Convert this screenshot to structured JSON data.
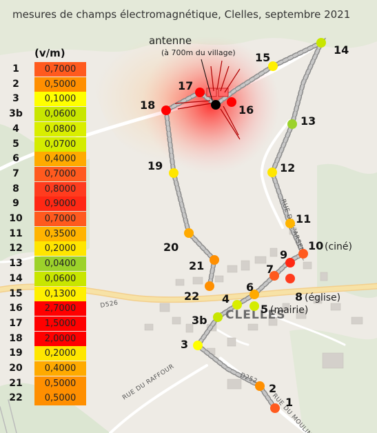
{
  "title": "mesures de champs électromagnétique, Clelles, septembre 2021",
  "legend": {
    "unit": "(v/m)",
    "rows": [
      {
        "id": "1",
        "value": "0,7000",
        "color": "#ff5a1e"
      },
      {
        "id": "2",
        "value": "0,5000",
        "color": "#ff8f00"
      },
      {
        "id": "3",
        "value": "0,1000",
        "color": "#ffff00"
      },
      {
        "id": "3b",
        "value": "0,0600",
        "color": "#c8e600"
      },
      {
        "id": "4",
        "value": "0,0800",
        "color": "#d9ee00"
      },
      {
        "id": "5",
        "value": "0,0700",
        "color": "#d4ec00"
      },
      {
        "id": "6",
        "value": "0,4000",
        "color": "#ffaa00"
      },
      {
        "id": "7",
        "value": "0,7000",
        "color": "#ff5a1e"
      },
      {
        "id": "8",
        "value": "0,8000",
        "color": "#ff3c1e"
      },
      {
        "id": "9",
        "value": "0,9000",
        "color": "#ff2814"
      },
      {
        "id": "10",
        "value": "0,7000",
        "color": "#ff5a1e"
      },
      {
        "id": "11",
        "value": "0,3500",
        "color": "#ffb400"
      },
      {
        "id": "12",
        "value": "0,2000",
        "color": "#ffe600"
      },
      {
        "id": "13",
        "value": "0,0400",
        "color": "#9cd22a"
      },
      {
        "id": "14",
        "value": "0,0600",
        "color": "#c8e600"
      },
      {
        "id": "15",
        "value": "0,1300",
        "color": "#fff000"
      },
      {
        "id": "16",
        "value": "2,7000",
        "color": "#ff0000"
      },
      {
        "id": "17",
        "value": "1,5000",
        "color": "#ff0000"
      },
      {
        "id": "18",
        "value": "2,0000",
        "color": "#ff0000"
      },
      {
        "id": "19",
        "value": "0,2000",
        "color": "#ffe600"
      },
      {
        "id": "20",
        "value": "0,4000",
        "color": "#ffaa00"
      },
      {
        "id": "21",
        "value": "0,5000",
        "color": "#ff8f00"
      },
      {
        "id": "22",
        "value": "0,5000",
        "color": "#ff8f00"
      }
    ]
  },
  "antenna": {
    "label": "antenne",
    "note": "(à 700m du village)",
    "color": "#000000"
  },
  "town": "CLELLES",
  "roads": [
    "D526",
    "D252",
    "RUE DU RAFFOUR",
    "RUE DU MOULIN",
    "RUE DE L'ARSENAL"
  ],
  "point_notes": {
    "10": "(ciné)",
    "5": "(mairie)",
    "8": "(église)"
  },
  "points": [
    {
      "id": "1",
      "color": "#ff5a1e"
    },
    {
      "id": "2",
      "color": "#ff8f00"
    },
    {
      "id": "3",
      "color": "#ffff00"
    },
    {
      "id": "3b",
      "color": "#c8e600"
    },
    {
      "id": "4",
      "color": "#d9ee00"
    },
    {
      "id": "5",
      "color": "#d4ec00"
    },
    {
      "id": "6",
      "color": "#ffaa00"
    },
    {
      "id": "7",
      "color": "#ff5a1e"
    },
    {
      "id": "8",
      "color": "#ff3c1e"
    },
    {
      "id": "9",
      "color": "#ff2814"
    },
    {
      "id": "10",
      "color": "#ff5a1e"
    },
    {
      "id": "11",
      "color": "#ffb400"
    },
    {
      "id": "12",
      "color": "#ffe600"
    },
    {
      "id": "13",
      "color": "#9cd22a"
    },
    {
      "id": "14",
      "color": "#c8e600"
    },
    {
      "id": "15",
      "color": "#fff000"
    },
    {
      "id": "16",
      "color": "#ff0000"
    },
    {
      "id": "17",
      "color": "#ff0000"
    },
    {
      "id": "18",
      "color": "#ff0000"
    },
    {
      "id": "19",
      "color": "#ffe600"
    },
    {
      "id": "20",
      "color": "#ffaa00"
    },
    {
      "id": "21",
      "color": "#ff8f00"
    },
    {
      "id": "22",
      "color": "#ff8f00"
    }
  ]
}
